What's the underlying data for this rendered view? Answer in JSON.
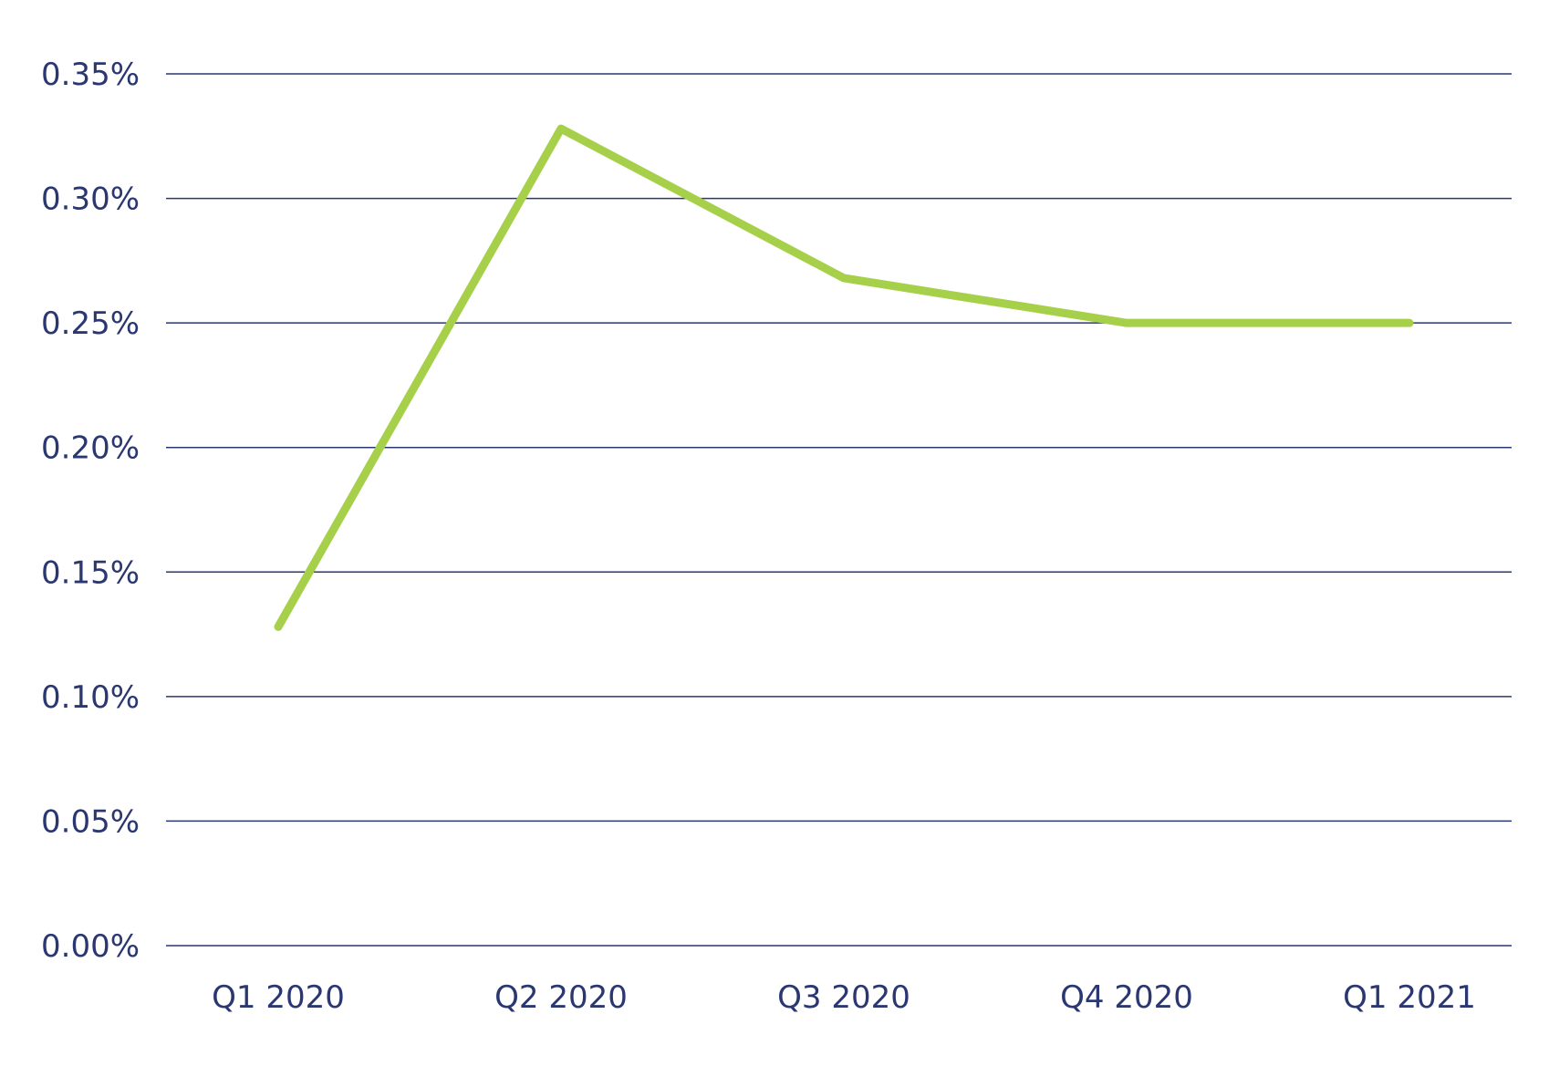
{
  "chart_data": {
    "type": "line",
    "title": "",
    "xlabel": "",
    "ylabel": "",
    "categories": [
      "Q1 2020",
      "Q2 2020",
      "Q3 2020",
      "Q4 2020",
      "Q1 2021"
    ],
    "series": [
      {
        "values": [
          0.128,
          0.328,
          0.268,
          0.25,
          0.25
        ],
        "color": "#a6d04a"
      }
    ],
    "y_ticks": [
      0.0,
      0.05,
      0.1,
      0.15,
      0.2,
      0.25,
      0.3,
      0.35
    ],
    "y_tick_labels": [
      "0.00%",
      "0.05%",
      "0.10%",
      "0.15%",
      "0.20%",
      "0.25%",
      "0.30%",
      "0.35%"
    ],
    "ylim": [
      0,
      0.35
    ],
    "grid": true,
    "legend": "none",
    "colors": {
      "axis_text": "#2a3770",
      "gridline": "#2a3770",
      "line": "#a6d04a"
    }
  }
}
